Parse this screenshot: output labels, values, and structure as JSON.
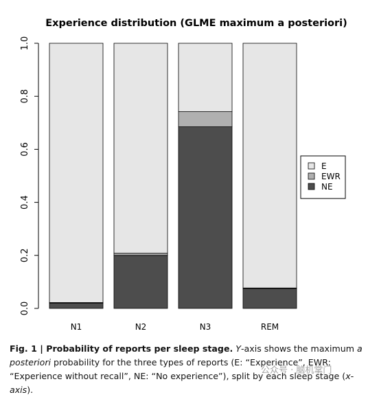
{
  "chart_data": {
    "type": "bar",
    "stacked": true,
    "title": "Experience distribution (GLME maximum a posteriori)",
    "categories": [
      "N1",
      "N2",
      "N3",
      "REM"
    ],
    "series": [
      {
        "name": "NE",
        "color": "#4d4d4d",
        "values": [
          0.02,
          0.2,
          0.685,
          0.075
        ]
      },
      {
        "name": "EWR",
        "color": "#b0b0b0",
        "values": [
          0.002,
          0.008,
          0.057,
          0.002
        ]
      },
      {
        "name": "E",
        "color": "#e6e6e6",
        "values": [
          0.978,
          0.792,
          0.258,
          0.923
        ]
      }
    ],
    "legend_order": [
      "E",
      "EWR",
      "NE"
    ],
    "legend_position": "right",
    "yticks": [
      "0.0",
      "0.2",
      "0.4",
      "0.6",
      "0.8",
      "1.0"
    ],
    "ylim": [
      0,
      1
    ],
    "xlabel": "",
    "ylabel": ""
  },
  "caption": {
    "fig_label": "Fig. 1 | Probability of reports per sleep stage.",
    "y_letter": "Y",
    "part1": "-axis shows the maximum ",
    "a_italic": "a",
    "posteriori_italic": "posteriori",
    "part2": " probability for the three types of reports (E: “Experience”, EWR: “Experience without recall”, NE: “No experience”), split by each sleep stage (",
    "x_axis_italic": "x-axis",
    "part3": ")."
  },
  "watermark": "公众号 · 脑机掌门"
}
